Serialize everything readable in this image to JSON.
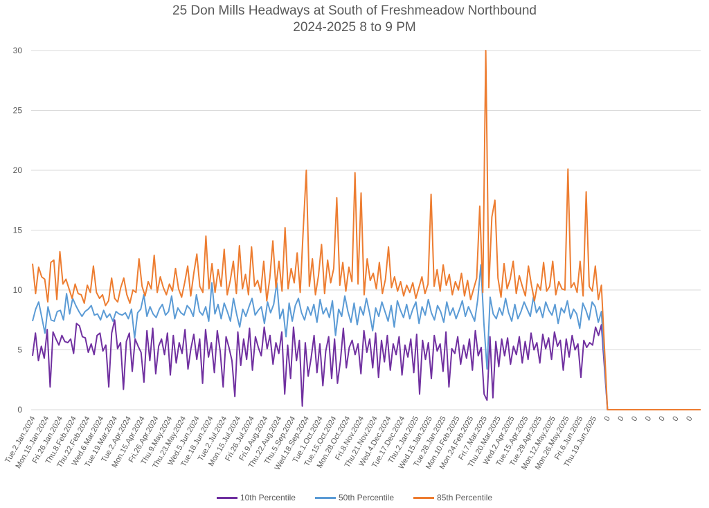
{
  "chart_data": {
    "type": "line",
    "title": "25 Don Mills Headways at South of Freshmeadow Northbound",
    "subtitle": "2024-2025 8 to 9 PM",
    "xlabel": "",
    "ylabel": "",
    "ylim": [
      0,
      30
    ],
    "yticks": [
      0,
      5,
      10,
      15,
      20,
      25,
      30
    ],
    "grid": true,
    "legend_position": "bottom",
    "x_tick_labels": [
      "Tue.2.Jan.2024",
      "Mon.15.Jan.2024",
      "Fri.26.Jan.2024",
      "Thu.8.Feb.2024",
      "Thu.22.Feb.2024",
      "Wed.6.Mar.2024",
      "Tue.19.Mar.2024",
      "Tue.2.Apr.2024",
      "Mon.15.Apr.2024",
      "Fri.26.Apr.2024",
      "Thu.9.May.2024",
      "Thu.23.May.2024",
      "Wed.5.Jun.2024",
      "Tue.18.Jun.2024",
      "Tue.2.Jul.2024",
      "Mon.15.Jul.2024",
      "Fri.26.Jul.2024",
      "Fri.9.Aug.2024",
      "Thu.22.Aug.2024",
      "Thu.5.Sep.2024",
      "Wed.18.Sep.2024",
      "Tue.1.Oct.2024",
      "Tue.15.Oct.2024",
      "Mon.28.Oct.2024",
      "Fri.8.Nov.2024",
      "Thu.21.Nov.2024",
      "Wed.4.Dec.2024",
      "Tue.17.Dec.2024",
      "Thu.2.Jan.2025",
      "Wed.15.Jan.2025",
      "Tue.28.Jan.2025",
      "Mon.10.Feb.2025",
      "Mon.24.Feb.2025",
      "Fri.7.Mar.2025",
      "Thu.20.Mar.2025",
      "Wed.2.Apr.2025",
      "Tue.15.Apr.2025",
      "Tue.29.Apr.2025",
      "Mon.12.May.2025",
      "Mon.26.May.2025",
      "Fri.6.Jun.2025",
      "Thu.19.Jun.2025",
      "0",
      "0",
      "0",
      "0",
      "0",
      "0",
      "0"
    ],
    "points_per_tick": 4,
    "series": [
      {
        "name": "10th Percentile",
        "color": "#7030A0",
        "values": [
          4.5,
          6.4,
          4.1,
          5.3,
          4.3,
          6.7,
          1.9,
          6.5,
          5.9,
          5.4,
          6.2,
          5.7,
          5.6,
          5.9,
          4.7,
          7.2,
          7.0,
          6.1,
          6.0,
          4.8,
          5.5,
          4.6,
          6.2,
          6.4,
          4.9,
          5.4,
          1.9,
          6.4,
          7.5,
          5.1,
          5.6,
          1.7,
          5.7,
          6.4,
          3.2,
          5.9,
          5.3,
          4.8,
          2.3,
          6.6,
          4.1,
          6.8,
          3.0,
          5.3,
          5.9,
          4.6,
          6.4,
          2.9,
          6.2,
          3.9,
          5.6,
          4.7,
          6.7,
          3.4,
          5.1,
          6.3,
          4.2,
          5.9,
          2.2,
          6.7,
          4.4,
          5.6,
          3.1,
          6.6,
          4.9,
          1.9,
          6.1,
          5.2,
          4.1,
          1.1,
          6.5,
          3.7,
          5.9,
          4.2,
          6.8,
          3.3,
          6.1,
          5.2,
          4.5,
          6.9,
          5.1,
          6.2,
          3.8,
          5.6,
          4.7,
          6.5,
          1.3,
          5.4,
          2.6,
          6.9,
          4.1,
          5.8,
          0.3,
          5.6,
          2.8,
          4.3,
          6.2,
          3.1,
          5.5,
          2.0,
          4.9,
          6.1,
          2.6,
          5.9,
          2.2,
          4.1,
          6.8,
          3.5,
          5.2,
          5.8,
          4.6,
          5.5,
          3.0,
          6.6,
          4.8,
          5.9,
          3.5,
          6.4,
          2.7,
          5.8,
          4.0,
          6.2,
          3.3,
          5.5,
          4.6,
          6.1,
          2.9,
          5.4,
          4.4,
          5.9,
          3.1,
          6.3,
          1.3,
          5.8,
          4.2,
          5.6,
          2.6,
          6.2,
          4.9,
          5.5,
          3.2,
          6.5,
          1.9,
          5.1,
          4.7,
          6.1,
          3.8,
          5.4,
          4.3,
          5.9,
          3.3,
          6.6,
          4.5,
          5.2,
          1.3,
          0.8,
          6.1,
          1.0,
          5.7,
          3.6,
          5.9,
          4.5,
          6.0,
          3.8,
          5.3,
          4.6,
          6.1,
          3.9,
          5.7,
          4.2,
          6.4,
          5.0,
          5.6,
          3.9,
          6.3,
          5.1,
          6.0,
          4.2,
          6.5,
          5.3,
          5.8,
          3.3,
          5.9,
          4.4,
          6.2,
          5.0,
          5.5,
          2.7,
          5.8,
          5.2,
          5.6,
          5.4,
          6.9,
          6.2,
          7.1,
          0,
          0,
          0,
          0,
          0,
          0,
          0
        ]
      },
      {
        "name": "50th Percentile",
        "color": "#5B9BD5",
        "values": [
          7.4,
          8.4,
          9.0,
          7.7,
          6.4,
          8.6,
          7.5,
          7.4,
          8.2,
          8.3,
          7.5,
          9.7,
          8.0,
          9.3,
          8.7,
          8.2,
          7.8,
          8.2,
          8.4,
          8.7,
          7.9,
          8.0,
          7.5,
          8.3,
          7.7,
          8.0,
          7.4,
          8.2,
          8.0,
          7.9,
          8.1,
          7.6,
          8.4,
          6.0,
          8.1,
          8.4,
          9.6,
          7.8,
          8.6,
          8.0,
          7.7,
          8.4,
          8.8,
          7.9,
          8.2,
          9.5,
          7.6,
          8.5,
          8.1,
          7.9,
          8.7,
          8.4,
          7.8,
          9.6,
          8.2,
          7.9,
          8.6,
          7.4,
          10.6,
          8.0,
          8.8,
          7.6,
          8.9,
          8.2,
          7.4,
          9.3,
          8.0,
          6.9,
          8.4,
          7.8,
          8.6,
          9.3,
          7.9,
          8.3,
          8.6,
          7.2,
          9.0,
          8.1,
          8.8,
          10.6,
          7.6,
          8.4,
          6.1,
          8.9,
          7.4,
          8.7,
          9.3,
          8.1,
          7.5,
          8.6,
          7.9,
          8.8,
          7.3,
          9.2,
          8.0,
          8.5,
          7.7,
          9.1,
          6.2,
          8.4,
          7.8,
          9.5,
          8.2,
          7.3,
          8.9,
          7.1,
          8.6,
          7.9,
          9.3,
          8.1,
          6.6,
          8.5,
          7.8,
          9.0,
          8.2,
          7.4,
          8.7,
          6.9,
          9.1,
          8.3,
          7.7,
          8.8,
          7.6,
          8.4,
          9.0,
          7.2,
          8.6,
          7.9,
          9.2,
          8.1,
          7.5,
          8.7,
          8.2,
          7.3,
          9.0,
          7.9,
          8.5,
          7.6,
          8.3,
          9.1,
          7.8,
          8.6,
          8.0,
          7.4,
          9.2,
          12.1,
          7.2,
          3.4,
          9.4,
          8.0,
          7.6,
          8.5,
          7.9,
          9.3,
          8.1,
          7.4,
          8.8,
          7.6,
          8.2,
          9.0,
          8.4,
          7.8,
          9.4,
          8.1,
          8.6,
          7.7,
          9.0,
          8.3,
          7.9,
          8.8,
          7.2,
          8.5,
          8.1,
          9.1,
          7.6,
          8.4,
          8.0,
          6.8,
          8.9,
          8.3,
          7.5,
          9.0,
          8.6,
          7.3,
          8.2,
          0,
          0,
          0,
          0,
          0,
          0,
          0
        ]
      },
      {
        "name": "85th Percentile",
        "color": "#ED7D31",
        "values": [
          12.2,
          9.7,
          11.9,
          11.1,
          10.9,
          9.0,
          12.3,
          12.5,
          9.2,
          13.2,
          10.5,
          10.9,
          10.1,
          9.3,
          10.5,
          9.7,
          9.6,
          8.9,
          10.4,
          9.8,
          12.0,
          9.8,
          9.3,
          9.6,
          8.7,
          9.1,
          11.0,
          9.3,
          9.0,
          10.2,
          11.0,
          9.6,
          8.9,
          10.0,
          9.8,
          12.6,
          10.3,
          9.5,
          10.7,
          10.1,
          12.9,
          9.8,
          11.1,
          10.2,
          9.6,
          10.5,
          9.9,
          11.8,
          10.1,
          9.4,
          10.6,
          12.0,
          9.5,
          11.4,
          13.0,
          10.3,
          9.8,
          14.5,
          10.1,
          12.2,
          9.8,
          11.7,
          10.3,
          13.4,
          9.6,
          10.8,
          12.4,
          9.7,
          13.7,
          10.1,
          11.3,
          9.6,
          13.6,
          10.3,
          10.8,
          9.8,
          12.4,
          9.1,
          11.0,
          14.1,
          10.2,
          12.4,
          9.9,
          15.2,
          10.1,
          11.8,
          10.6,
          13.1,
          9.8,
          15.1,
          20.0,
          10.3,
          12.6,
          9.6,
          11.2,
          13.8,
          9.7,
          12.5,
          10.6,
          11.8,
          17.7,
          10.4,
          12.3,
          9.9,
          11.9,
          10.7,
          19.8,
          10.5,
          18.1,
          9.6,
          12.6,
          10.8,
          11.4,
          10.1,
          12.3,
          9.7,
          10.9,
          13.6,
          10.2,
          11.1,
          9.9,
          10.7,
          9.5,
          10.4,
          9.8,
          10.6,
          9.3,
          10.2,
          11.1,
          9.7,
          10.5,
          18.0,
          10.3,
          11.7,
          9.9,
          12.1,
          10.4,
          11.3,
          9.6,
          10.7,
          10.0,
          11.4,
          9.5,
          10.8,
          9.2,
          10.1,
          11.0,
          17.0,
          9.8,
          30.0,
          10.2,
          16.1,
          17.5,
          11.0,
          9.4,
          12.2,
          10.1,
          10.9,
          12.4,
          9.7,
          11.2,
          10.3,
          9.5,
          12.0,
          10.4,
          9.1,
          10.5,
          10.0,
          12.3,
          9.9,
          10.3,
          12.4,
          9.6,
          10.7,
          10.1,
          10.0,
          20.1,
          10.2,
          10.6,
          9.8,
          12.4,
          9.5,
          18.2,
          10.3,
          9.9,
          12.0,
          9.2,
          10.4,
          0,
          0,
          0,
          0,
          0,
          0,
          0
        ]
      }
    ]
  }
}
